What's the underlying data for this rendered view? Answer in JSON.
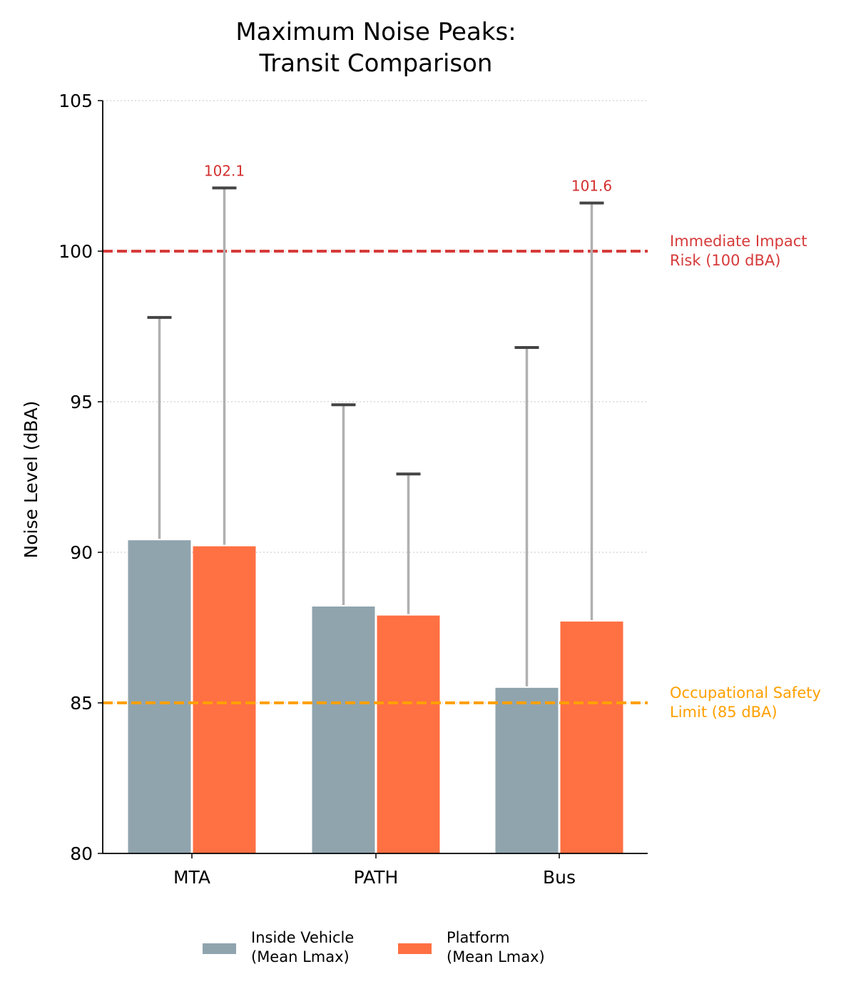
{
  "chart_data": {
    "type": "bar",
    "title": [
      "Maximum Noise Peaks:",
      "Transit Comparison"
    ],
    "xlabel": "",
    "ylabel": "Noise Level (dBA)",
    "ylim": [
      80,
      105
    ],
    "yticks": [
      80,
      85,
      90,
      95,
      100,
      105
    ],
    "grid": "horizontal dotted",
    "categories": [
      "MTA",
      "PATH",
      "Bus"
    ],
    "series": [
      {
        "name": "Inside Vehicle\n(Mean Lmax)",
        "legend_lines": [
          "Inside Vehicle",
          "(Mean Lmax)"
        ],
        "color": "#90a4ae",
        "values": [
          90.4,
          88.2,
          85.5
        ],
        "max": [
          97.8,
          94.9,
          96.8
        ]
      },
      {
        "name": "Platform\n(Mean Lmax)",
        "legend_lines": [
          "Platform",
          "(Mean Lmax)"
        ],
        "color": "#ff7043",
        "values": [
          90.2,
          87.9,
          87.7
        ],
        "max": [
          102.1,
          92.6,
          101.6
        ]
      }
    ],
    "annotations": [
      {
        "text": "102.1",
        "category": "MTA",
        "series": 1,
        "value": 102.1
      },
      {
        "text": "101.6",
        "category": "Bus",
        "series": 1,
        "value": 101.6
      }
    ],
    "reference_lines": [
      {
        "value": 100,
        "label_lines": [
          "Immediate Impact",
          "Risk (100 dBA)"
        ],
        "color": "#d63a3a"
      },
      {
        "value": 85,
        "label_lines": [
          "Occupational Safety",
          "Limit (85 dBA)"
        ],
        "color": "#ffa000"
      }
    ],
    "legend_position": "bottom-center",
    "annotation_color": "#d32f2f"
  }
}
